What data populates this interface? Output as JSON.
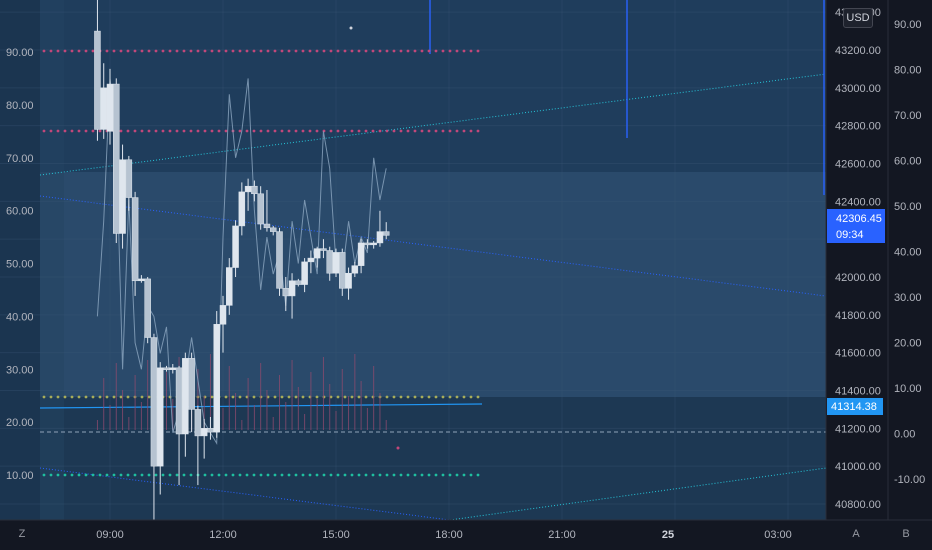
{
  "currency": "USD",
  "time_labels": [
    "09:00",
    "12:00",
    "15:00",
    "18:00",
    "21:00",
    "25",
    "03:00"
  ],
  "bottom_buttons": {
    "left": "Z",
    "auto": "A",
    "b": "B"
  },
  "chart_data": {
    "type": "candlestick",
    "price_axis": {
      "ticks": [
        "40800.00",
        "41000.00",
        "41200.00",
        "41400.00",
        "41600.00",
        "41800.00",
        "42000.00",
        "42200.00",
        "42400.00",
        "42600.00",
        "42800.00",
        "43000.00",
        "43200.00",
        "43400.00"
      ]
    },
    "left_axis": {
      "ticks": [
        "10.00",
        "20.00",
        "30.00",
        "40.00",
        "50.00",
        "60.00",
        "70.00",
        "80.00",
        "90.00"
      ]
    },
    "right_axis": {
      "ticks": [
        "-10.00",
        "0.00",
        "10.00",
        "20.00",
        "30.00",
        "40.00",
        "50.00",
        "60.00",
        "70.00",
        "80.00",
        "90.00"
      ]
    },
    "last_price": {
      "value": "42306.45",
      "countdown": "09:34"
    },
    "marked_level": {
      "value": "41314.38"
    },
    "candles": [
      {
        "t": "08:40",
        "o": 43300,
        "h": 43700,
        "l": 42720,
        "c": 42780
      },
      {
        "t": "08:50",
        "o": 42780,
        "h": 43130,
        "l": 42730,
        "c": 43000
      },
      {
        "t": "09:00",
        "o": 42770,
        "h": 43100,
        "l": 42700,
        "c": 43020
      },
      {
        "t": "09:10",
        "o": 43020,
        "h": 43050,
        "l": 42180,
        "c": 42230
      },
      {
        "t": "09:20",
        "o": 42230,
        "h": 42700,
        "l": 42150,
        "c": 42620
      },
      {
        "t": "09:30",
        "o": 42620,
        "h": 42640,
        "l": 42350,
        "c": 42420
      },
      {
        "t": "09:40",
        "o": 42420,
        "h": 42450,
        "l": 41900,
        "c": 41980
      },
      {
        "t": "09:50",
        "o": 41980,
        "h": 42010,
        "l": 41970,
        "c": 41990
      },
      {
        "t": "10:00",
        "o": 41990,
        "h": 42000,
        "l": 41650,
        "c": 41680
      },
      {
        "t": "10:10",
        "o": 41680,
        "h": 41700,
        "l": 40700,
        "c": 41000
      },
      {
        "t": "10:20",
        "o": 41000,
        "h": 41550,
        "l": 40850,
        "c": 41520
      },
      {
        "t": "10:30",
        "o": 41520,
        "h": 41530,
        "l": 41500,
        "c": 41510
      },
      {
        "t": "10:40",
        "o": 41510,
        "h": 41540,
        "l": 41490,
        "c": 41520
      },
      {
        "t": "10:50",
        "o": 41520,
        "h": 41530,
        "l": 40900,
        "c": 41170
      },
      {
        "t": "11:00",
        "o": 41170,
        "h": 41600,
        "l": 41050,
        "c": 41570
      },
      {
        "t": "11:10",
        "o": 41570,
        "h": 41600,
        "l": 41180,
        "c": 41300
      },
      {
        "t": "11:20",
        "o": 41300,
        "h": 41320,
        "l": 40900,
        "c": 41160
      },
      {
        "t": "11:30",
        "o": 41160,
        "h": 41250,
        "l": 41040,
        "c": 41200
      },
      {
        "t": "11:40",
        "o": 41200,
        "h": 41260,
        "l": 41140,
        "c": 41180
      },
      {
        "t": "11:50",
        "o": 41180,
        "h": 41820,
        "l": 41150,
        "c": 41750
      },
      {
        "t": "12:00",
        "o": 41750,
        "h": 41900,
        "l": 41600,
        "c": 41850
      },
      {
        "t": "12:10",
        "o": 41850,
        "h": 42100,
        "l": 41800,
        "c": 42050
      },
      {
        "t": "12:20",
        "o": 42050,
        "h": 42300,
        "l": 42000,
        "c": 42270
      },
      {
        "t": "12:30",
        "o": 42270,
        "h": 42500,
        "l": 42220,
        "c": 42450
      },
      {
        "t": "12:40",
        "o": 42450,
        "h": 42520,
        "l": 42350,
        "c": 42480
      },
      {
        "t": "12:50",
        "o": 42480,
        "h": 42510,
        "l": 42400,
        "c": 42440
      },
      {
        "t": "13:00",
        "o": 42440,
        "h": 42480,
        "l": 42250,
        "c": 42280
      },
      {
        "t": "13:10",
        "o": 42280,
        "h": 42460,
        "l": 42240,
        "c": 42260
      },
      {
        "t": "13:20",
        "o": 42260,
        "h": 42270,
        "l": 42220,
        "c": 42240
      },
      {
        "t": "13:30",
        "o": 42240,
        "h": 42260,
        "l": 41900,
        "c": 41940
      },
      {
        "t": "13:40",
        "o": 41940,
        "h": 42000,
        "l": 41820,
        "c": 41900
      },
      {
        "t": "13:50",
        "o": 41900,
        "h": 42020,
        "l": 41780,
        "c": 41980
      },
      {
        "t": "14:00",
        "o": 41980,
        "h": 41990,
        "l": 41950,
        "c": 41960
      },
      {
        "t": "14:10",
        "o": 41960,
        "h": 42100,
        "l": 41920,
        "c": 42080
      },
      {
        "t": "14:20",
        "o": 42080,
        "h": 42140,
        "l": 42020,
        "c": 42100
      },
      {
        "t": "14:30",
        "o": 42100,
        "h": 42160,
        "l": 42050,
        "c": 42150
      },
      {
        "t": "14:40",
        "o": 42150,
        "h": 42200,
        "l": 42100,
        "c": 42140
      },
      {
        "t": "14:50",
        "o": 42140,
        "h": 42160,
        "l": 41980,
        "c": 42020
      },
      {
        "t": "15:00",
        "o": 42020,
        "h": 42150,
        "l": 42000,
        "c": 42130
      },
      {
        "t": "15:10",
        "o": 42130,
        "h": 42150,
        "l": 41900,
        "c": 41940
      },
      {
        "t": "15:20",
        "o": 41940,
        "h": 42050,
        "l": 41880,
        "c": 42020
      },
      {
        "t": "15:30",
        "o": 42020,
        "h": 42080,
        "l": 42000,
        "c": 42060
      },
      {
        "t": "15:40",
        "o": 42060,
        "h": 42200,
        "l": 42020,
        "c": 42180
      },
      {
        "t": "15:50",
        "o": 42180,
        "h": 42200,
        "l": 42150,
        "c": 42170
      },
      {
        "t": "16:00",
        "o": 42170,
        "h": 42190,
        "l": 42150,
        "c": 42180
      },
      {
        "t": "16:10",
        "o": 42180,
        "h": 42350,
        "l": 42160,
        "c": 42240
      },
      {
        "t": "16:20",
        "o": 42240,
        "h": 42290,
        "l": 42200,
        "c": 42220
      }
    ],
    "oscillator_left": [
      40,
      58,
      85,
      72,
      30,
      62,
      35,
      30,
      42,
      40,
      33,
      38,
      18,
      22,
      28,
      36,
      28,
      20,
      18,
      16,
      55,
      82,
      70,
      75,
      85,
      60,
      45,
      55,
      48,
      52,
      42,
      58,
      50,
      62,
      55,
      48,
      75,
      68,
      50,
      48,
      58,
      50,
      55,
      52,
      70,
      62,
      68
    ]
  }
}
